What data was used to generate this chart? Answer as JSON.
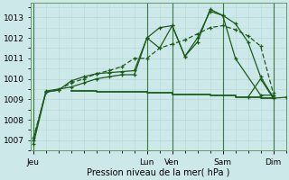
{
  "background_color": "#cce8e8",
  "grid_color": "#b8d8d8",
  "line_color": "#1a5c1a",
  "xlabel": "Pression niveau de la mer( hPa )",
  "ylim": [
    1006.5,
    1013.7
  ],
  "yticks": [
    1007,
    1008,
    1009,
    1010,
    1011,
    1012,
    1013
  ],
  "xtick_labels": [
    "Jeu",
    "Lun",
    "Ven",
    "Sam",
    "Dim"
  ],
  "xtick_positions": [
    0,
    9,
    11,
    15,
    19
  ],
  "day_separators": [
    0,
    9,
    11,
    15,
    19
  ],
  "xlim": [
    -0.2,
    20
  ],
  "line1_x": [
    0,
    1,
    2,
    3,
    4,
    5,
    6,
    7,
    8,
    9,
    10,
    11,
    12,
    13,
    14,
    15,
    16,
    18,
    19
  ],
  "line1_y": [
    1007.0,
    1009.4,
    1009.5,
    1009.6,
    1009.8,
    1010.0,
    1010.1,
    1010.2,
    1010.2,
    1012.0,
    1012.5,
    1012.6,
    1011.1,
    1012.0,
    1013.3,
    1013.1,
    1011.0,
    1009.2,
    1009.2
  ],
  "line2_x": [
    0,
    1,
    2,
    3,
    4,
    5,
    6,
    7,
    8,
    9,
    10,
    11,
    12,
    13,
    14,
    15,
    16,
    17,
    18,
    19
  ],
  "line2_y": [
    1006.8,
    1009.35,
    1009.45,
    1009.9,
    1010.1,
    1010.25,
    1010.3,
    1010.35,
    1010.4,
    1012.0,
    1011.5,
    1012.6,
    1011.1,
    1011.8,
    1013.4,
    1013.1,
    1012.7,
    1011.8,
    1010.1,
    1009.1
  ],
  "line3_x": [
    0,
    1,
    2,
    3,
    4,
    5,
    6,
    7,
    8,
    9,
    10,
    11,
    12,
    13,
    14,
    15,
    16,
    17,
    18,
    19
  ],
  "line3_y": [
    1007.1,
    1009.35,
    1009.45,
    1009.8,
    1010.0,
    1010.25,
    1010.4,
    1010.6,
    1011.0,
    1011.0,
    1011.5,
    1011.7,
    1011.9,
    1012.2,
    1012.5,
    1012.6,
    1012.4,
    1012.1,
    1011.6,
    1009.3
  ],
  "line4_x": [
    3,
    4,
    5,
    6,
    7,
    8,
    9,
    10,
    11,
    12,
    13,
    14,
    15,
    16,
    17,
    18,
    19
  ],
  "line4_y": [
    1009.4,
    1009.4,
    1009.35,
    1009.35,
    1009.35,
    1009.35,
    1009.3,
    1009.3,
    1009.25,
    1009.25,
    1009.25,
    1009.2,
    1009.2,
    1009.1,
    1009.1,
    1009.05,
    1009.05
  ],
  "line5_x": [
    17,
    18,
    19,
    20
  ],
  "line5_y": [
    1009.1,
    1010.0,
    1009.05,
    1009.1
  ],
  "markersize": 3,
  "linewidth": 0.9,
  "sep_color": "#3a7a3a",
  "sep_linewidth": 0.8
}
